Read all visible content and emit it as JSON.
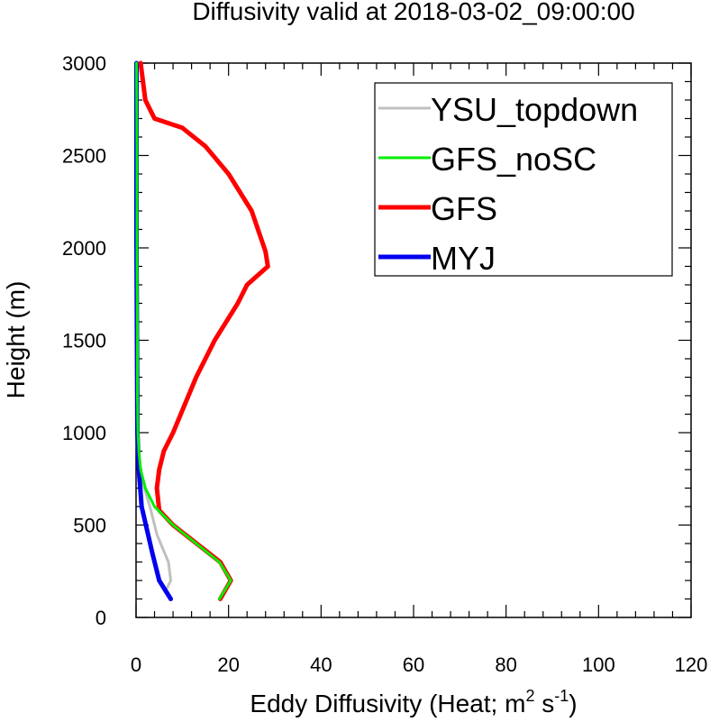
{
  "chart_data": {
    "type": "line",
    "title": "Diffusivity valid at 2018-03-02_09:00:00",
    "xlabel": "Eddy Diffusivity (Heat; m",
    "xlabel_sup1": "2",
    "xlabel_mid": " s",
    "xlabel_sup2": "-1",
    "xlabel_end": ")",
    "ylabel": "Height (m)",
    "xlim": [
      0,
      120
    ],
    "ylim": [
      0,
      3000
    ],
    "x_ticks": [
      0,
      20,
      40,
      60,
      80,
      100,
      120
    ],
    "y_ticks": [
      0,
      500,
      1000,
      1500,
      2000,
      2500,
      3000
    ],
    "x_tick_labels": [
      "0",
      "20",
      "40",
      "60",
      "80",
      "100",
      "120"
    ],
    "y_tick_labels": [
      "0",
      "500",
      "1000",
      "1500",
      "2000",
      "2500",
      "3000"
    ],
    "grid": false,
    "legend_position": "top-right",
    "series": [
      {
        "name": "YSU_topdown",
        "color": "#c0c0c0",
        "points": [
          [
            7.5,
            100
          ],
          [
            6.5,
            150
          ],
          [
            7.5,
            200
          ],
          [
            7,
            300
          ],
          [
            4.5,
            450
          ],
          [
            3,
            600
          ],
          [
            1.8,
            700
          ],
          [
            1,
            800
          ],
          [
            0.6,
            900
          ],
          [
            0.4,
            1000
          ],
          [
            0.3,
            1200
          ],
          [
            0.3,
            1500
          ],
          [
            0.3,
            2000
          ],
          [
            0.2,
            2500
          ],
          [
            0.2,
            3000
          ]
        ]
      },
      {
        "name": "GFS_noSC",
        "color": "#00ee00",
        "points": [
          [
            18,
            100
          ],
          [
            20.5,
            200
          ],
          [
            18,
            300
          ],
          [
            8,
            500
          ],
          [
            4,
            600
          ],
          [
            2,
            700
          ],
          [
            1,
            800
          ],
          [
            0.6,
            900
          ],
          [
            0.4,
            1000
          ],
          [
            0.3,
            1200
          ],
          [
            0.3,
            1500
          ],
          [
            0.2,
            2000
          ],
          [
            0.2,
            2500
          ],
          [
            0.1,
            3000
          ]
        ]
      },
      {
        "name": "GFS",
        "color": "#ff0000",
        "points": [
          [
            18.2,
            100
          ],
          [
            20.5,
            200
          ],
          [
            18.2,
            300
          ],
          [
            8,
            500
          ],
          [
            5,
            580
          ],
          [
            4.5,
            700
          ],
          [
            5,
            800
          ],
          [
            6,
            900
          ],
          [
            8,
            1000
          ],
          [
            13,
            1300
          ],
          [
            17,
            1500
          ],
          [
            22,
            1700
          ],
          [
            24,
            1800
          ],
          [
            28.5,
            1900
          ],
          [
            28,
            1980
          ],
          [
            25,
            2200
          ],
          [
            20,
            2400
          ],
          [
            15,
            2550
          ],
          [
            10,
            2650
          ],
          [
            4,
            2700
          ],
          [
            2,
            2800
          ],
          [
            1,
            3000
          ]
        ]
      },
      {
        "name": "MYJ",
        "color": "#0000ee",
        "points": [
          [
            7.5,
            100
          ],
          [
            5,
            200
          ],
          [
            3.5,
            350
          ],
          [
            1.2,
            600
          ],
          [
            0.6,
            800
          ],
          [
            0.3,
            1000
          ],
          [
            0.2,
            1500
          ],
          [
            0.1,
            2000
          ],
          [
            0.1,
            2500
          ],
          [
            0.1,
            3000
          ]
        ]
      }
    ]
  }
}
